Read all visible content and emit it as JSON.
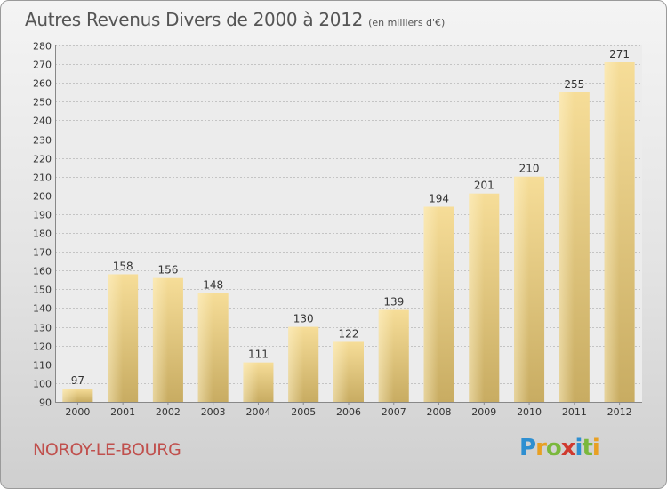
{
  "chart_data": {
    "type": "bar",
    "title": "Autres Revenus Divers de 2000 à 2012",
    "subtitle": "(en milliers d'€)",
    "categories": [
      "2000",
      "2001",
      "2002",
      "2003",
      "2004",
      "2005",
      "2006",
      "2007",
      "2008",
      "2009",
      "2010",
      "2011",
      "2012"
    ],
    "values": [
      97,
      158,
      156,
      148,
      111,
      130,
      122,
      139,
      194,
      201,
      210,
      255,
      271
    ],
    "ylim": [
      90,
      280
    ],
    "yticks": [
      90,
      100,
      110,
      120,
      130,
      140,
      150,
      160,
      170,
      180,
      190,
      200,
      210,
      220,
      230,
      240,
      250,
      260,
      270,
      280
    ],
    "xlabel": "",
    "ylabel": "",
    "grid": true,
    "bar_color": "#e8cf88"
  },
  "footer": {
    "place": "NOROY-LE-BOURG",
    "logo_letters": [
      "P",
      "r",
      "o",
      "x",
      "i",
      "t",
      "i"
    ],
    "logo_colors": [
      "#2e8fd1",
      "#e8a023",
      "#7ab83c",
      "#d03a2f",
      "#2e8fd1",
      "#7ab83c",
      "#e8a023"
    ]
  }
}
